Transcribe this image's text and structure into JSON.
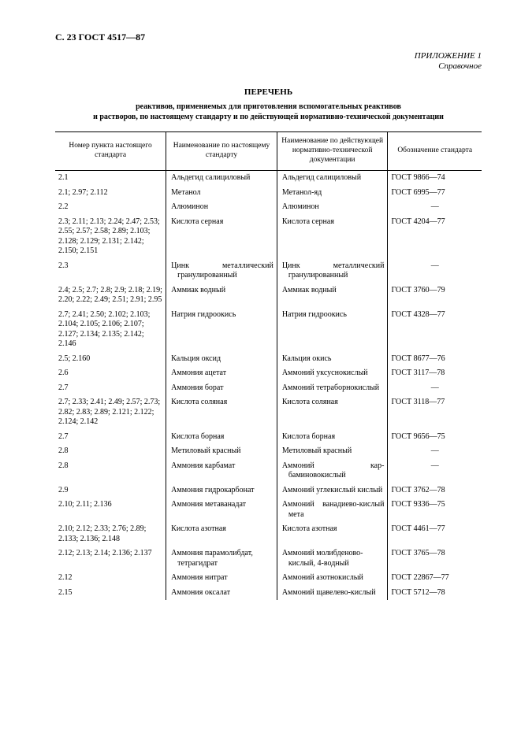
{
  "header": "С. 23 ГОСТ 4517—87",
  "annex_line1": "ПРИЛОЖЕНИЕ 1",
  "annex_line2": "Справочное",
  "title": "ПЕРЕЧЕНЬ",
  "subtitle_line1": "реактивов, применяемых для приготовления вспомогательных реактивов",
  "subtitle_line2": "и растворов, по настоящему стандарту и по действующей нормативно-технической документации",
  "columns": {
    "c1": "Номер пункта настоящего стандарта",
    "c2": "Наименование по настоящему стандарту",
    "c3": "Наименование по действующей нормативно-техниче­ской документации",
    "c4": "Обозначение стандарта"
  },
  "rows": [
    {
      "p": "2.1",
      "n1": "Альдегид салициловый",
      "n2": "Альдегид салициловый",
      "s": "ГОСТ 9866—74"
    },
    {
      "p": "2.1; 2.97; 2.112",
      "n1": "Метанол",
      "n2": "Метанол-яд",
      "s": "ГОСТ 6995—77"
    },
    {
      "p": "2.2",
      "n1": "Алюминон",
      "n2": "Алюминон",
      "s": "—",
      "dash": true
    },
    {
      "p": "2.3; 2.11; 2.13; 2.24; 2.47; 2.53; 2.55; 2.57; 2.58; 2.89; 2.103; 2.128; 2.129; 2.131; 2.142; 2.150; 2.151",
      "n1": "Кислота серная",
      "n2": "Кислота серная",
      "s": "ГОСТ 4204—77"
    },
    {
      "p": "2.3",
      "n1": "Цинк металлический гранулированный",
      "n2": "Цинк металлический гранулированный",
      "s": "—",
      "dash": true,
      "just": true
    },
    {
      "p": "2.4; 2.5; 2.7; 2.8; 2.9; 2.18; 2.19; 2.20; 2.22; 2.49; 2.51; 2.91; 2.95",
      "n1": "Аммиак водный",
      "n2": "Аммиак водный",
      "s": "ГОСТ 3760—79"
    },
    {
      "p": "2.7; 2.41; 2.50; 2.102; 2.103; 2.104; 2.105; 2.106; 2.107; 2.127; 2.134; 2.135; 2.142; 2.146",
      "n1": "Натрия гидроокись",
      "n2": "Натрия гидроокись",
      "s": "ГОСТ 4328—77"
    },
    {
      "p": "2.5; 2.160",
      "n1": "Кальция оксид",
      "n2": "Кальция окись",
      "s": "ГОСТ 8677—76"
    },
    {
      "p": "2.6",
      "n1": "Аммония ацетат",
      "n2": "Аммоний уксуснокислый",
      "s": "ГОСТ 3117—78"
    },
    {
      "p": "2.7",
      "n1": "Аммония борат",
      "n2": "Аммоний тетраборнокислый",
      "s": "—",
      "dash": true
    },
    {
      "p": "2.7; 2.33; 2.41; 2.49; 2.57; 2.73; 2.82; 2.83; 2.89; 2.121; 2.122; 2.124; 2.142",
      "n1": "Кислота соляная",
      "n2": "Кислота соляная",
      "s": "ГОСТ 3118—77"
    },
    {
      "p": "2.7",
      "n1": "Кислота борная",
      "n2": "Кислота борная",
      "s": "ГОСТ 9656—75"
    },
    {
      "p": "2.8",
      "n1": "Метиловый красный",
      "n2": "Метиловый красный",
      "s": "—",
      "dash": true
    },
    {
      "p": "2.8",
      "n1": "Аммония карбамат",
      "n2": "Аммоний кар­баминовокислый",
      "s": "—",
      "dash": true,
      "just2": true
    },
    {
      "p": "2.9",
      "n1": "Аммония гидрокарбонат",
      "n2": "Аммоний углекислый кислый",
      "s": "ГОСТ 3762—78",
      "just2": true
    },
    {
      "p": "2.10; 2.11; 2.136",
      "n1": "Аммония метаванадат",
      "n2": "Аммоний ванадиево-кислый мета",
      "s": "ГОСТ 9336—75",
      "just2": true
    },
    {
      "p": "2.10; 2.12; 2.33; 2.76; 2.89; 2.133; 2.136; 2.148",
      "n1": "Кислота азотная",
      "n2": "Кислота азотная",
      "s": "ГОСТ 4461—77"
    },
    {
      "p": "2.12; 2.13; 2.14; 2.136; 2.137",
      "n1": "Аммония парамолибдат, тетрагидрат",
      "n2": "Аммоний молибденово-кислый, 4-водный",
      "s": "ГОСТ 3765—78"
    },
    {
      "p": "2.12",
      "n1": "Аммония нитрат",
      "n2": "Аммоний азотнокислый",
      "s": "ГОСТ 22867—77"
    },
    {
      "p": "2.15",
      "n1": "Аммония оксалат",
      "n2": "Аммоний щавелево-кислый",
      "s": "ГОСТ 5712—78",
      "just2": true
    }
  ]
}
